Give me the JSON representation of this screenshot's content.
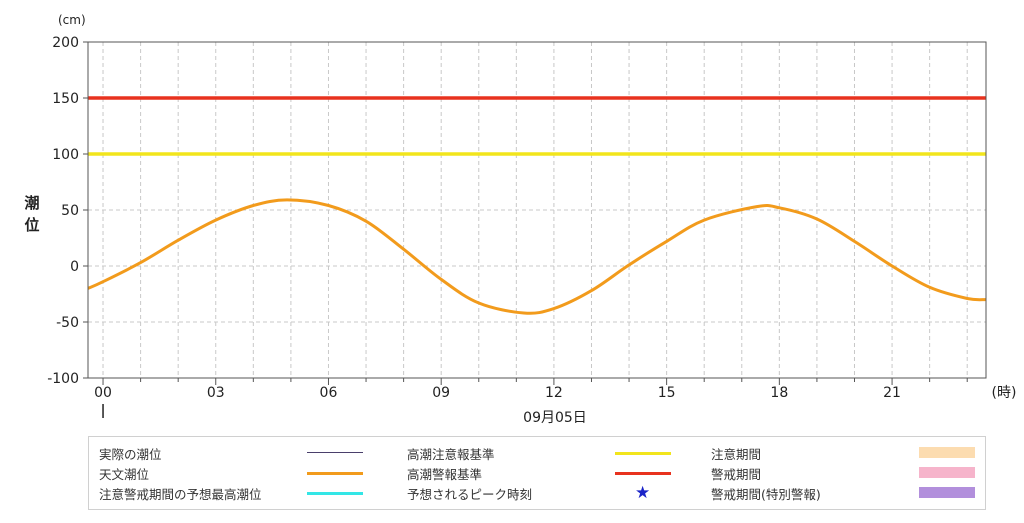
{
  "chart_data": {
    "type": "line",
    "y_unit": "(cm)",
    "ylabel": "潮位",
    "x_unit": "(時)",
    "date_label": "09月05日",
    "ylim": [
      -100,
      200
    ],
    "y_ticks": [
      200,
      150,
      100,
      50,
      0,
      -50,
      -100
    ],
    "xlim": [
      -0.4,
      23.5
    ],
    "x_tick_labels": [
      "00",
      "03",
      "06",
      "09",
      "12",
      "15",
      "18",
      "21"
    ],
    "x_tick_hours": [
      0,
      3,
      6,
      9,
      12,
      15,
      18,
      21
    ],
    "grid": true,
    "series": [
      {
        "name": "天文潮位",
        "color": "#f29b1c",
        "x": [
          -0.4,
          0,
          1,
          2,
          3,
          4,
          4.9,
          6,
          7,
          8,
          9,
          10,
          11.2,
          12,
          13,
          14,
          15,
          16,
          17.4,
          18,
          19,
          20,
          21,
          22,
          23,
          23.5
        ],
        "y": [
          -20,
          -14,
          3,
          23,
          41,
          54,
          59,
          54,
          40,
          15,
          -12,
          -33,
          -42,
          -38,
          -22,
          1,
          22,
          41,
          53,
          52,
          42,
          22,
          0,
          -19,
          -29,
          -30
        ]
      },
      {
        "name": "高潮注意報基準",
        "color": "#f2e51c",
        "constant": 100
      },
      {
        "name": "高潮警報基準",
        "color": "#e8321e",
        "constant": 150
      }
    ]
  },
  "legend": {
    "items": [
      {
        "label": "実際の潮位",
        "kind": "line",
        "color": "#4a3f6b",
        "thin": true
      },
      {
        "label": "高潮注意報基準",
        "kind": "line",
        "color": "#f2e51c"
      },
      {
        "label": "注意期間",
        "kind": "box",
        "color": "#fcdcb0"
      },
      {
        "label": "天文潮位",
        "kind": "line",
        "color": "#f29b1c"
      },
      {
        "label": "高潮警報基準",
        "kind": "line",
        "color": "#e8321e"
      },
      {
        "label": "警戒期間",
        "kind": "box",
        "color": "#f6b4cb"
      },
      {
        "label": "注意警戒期間の予想最高潮位",
        "kind": "line",
        "color": "#33e6e6"
      },
      {
        "label": "予想されるピーク時刻",
        "kind": "star",
        "color": "#1a23c8",
        "icon": "star-icon"
      },
      {
        "label": "警戒期間(特別警報)",
        "kind": "box",
        "color": "#b28fdc"
      }
    ]
  }
}
